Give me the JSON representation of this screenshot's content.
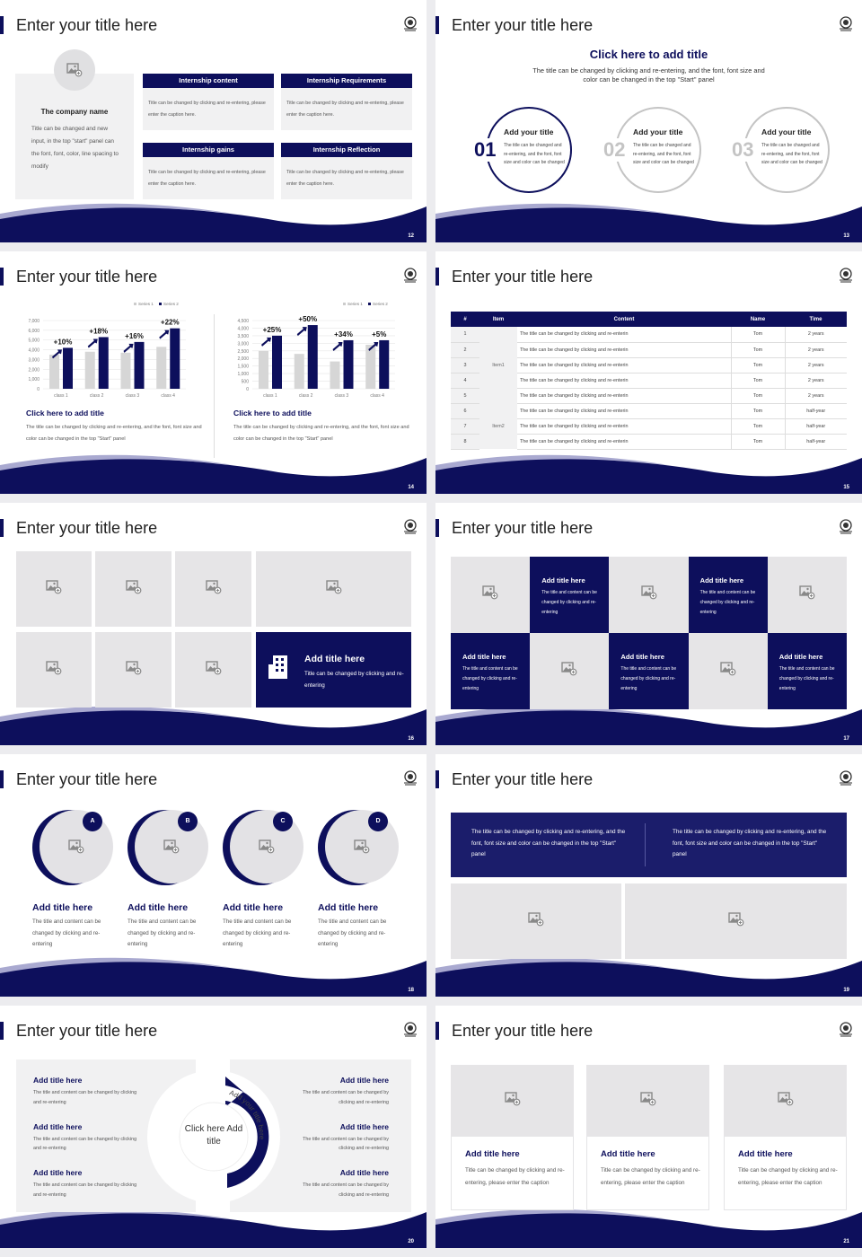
{
  "colors": {
    "navy": "#0d0f5c",
    "grey": "#e6e5e7",
    "light": "#f1f1f2",
    "ring_grey": "#c8c8c8"
  },
  "s12": {
    "title": "Enter your title here",
    "page": "12",
    "company": "The company name",
    "company_text": "Title can be changed and new input, in the top \"start\" panel can the font, font, color, line spacing to modify",
    "cards": [
      {
        "header": "Internship content",
        "text": "Title can be changed by clicking and re-entering, please enter the caption here."
      },
      {
        "header": "Internship Requirements",
        "text": "Title can be changed by clicking and re-entering, please enter the caption here."
      },
      {
        "header": "Internship gains",
        "text": "Title can be changed by clicking and re-entering, please enter the caption here."
      },
      {
        "header": "Internship Reflection",
        "text": "Title can be changed by clicking and re-entering, please enter the caption here."
      }
    ]
  },
  "s13": {
    "title": "Enter your title here",
    "page": "13",
    "heading": "Click here to add title",
    "subtext": "The title can be changed by clicking and re-entering, and the font, font size and color can be changed in the top \"Start\" panel",
    "items": [
      {
        "num": "01",
        "title": "Add your title",
        "text": "The title can be changed and re-entering, and the font, font size and color can be changed"
      },
      {
        "num": "02",
        "title": "Add your title",
        "text": "The title can be changed and re-entering, and the font, font size and color can be changed"
      },
      {
        "num": "03",
        "title": "Add your title",
        "text": "The title can be changed and re-entering, and the font, font size and color can be changed"
      }
    ]
  },
  "s14": {
    "title": "Enter your title here",
    "page": "14",
    "blocks": [
      {
        "heading": "Click here to add title",
        "text": "The title can be changed by clicking and re-entering, and the font, font size and color can be changed in the top \"Start\" panel"
      },
      {
        "heading": "Click here to add title",
        "text": "The title can be changed by clicking and re-entering, and the font, font size and color can be changed in the top \"Start\" panel"
      }
    ]
  },
  "chart_data": [
    {
      "type": "bar",
      "categories": [
        "class 1",
        "class 2",
        "class 3",
        "class 4"
      ],
      "series": [
        {
          "name": "Series 1",
          "values": [
            3500,
            3800,
            3700,
            4300
          ]
        },
        {
          "name": "Series 2",
          "values": [
            4200,
            5300,
            4800,
            6200
          ]
        }
      ],
      "annotations": [
        "+10%",
        "+18%",
        "+16%",
        "+22%"
      ],
      "ylim": [
        0,
        7000
      ],
      "yticks": [
        "0",
        "1,000",
        "2,000",
        "3,000",
        "4,000",
        "5,000",
        "6,000",
        "7,000"
      ],
      "legend": "top-right",
      "grid": true
    },
    {
      "type": "bar",
      "categories": [
        "class 1",
        "class 2",
        "class 3",
        "class 4"
      ],
      "series": [
        {
          "name": "Series 1",
          "values": [
            2500,
            2300,
            1800,
            2900
          ]
        },
        {
          "name": "Series 2",
          "values": [
            3500,
            4200,
            3200,
            3200
          ]
        }
      ],
      "annotations": [
        "+25%",
        "+50%",
        "+34%",
        "+5%"
      ],
      "ylim": [
        0,
        4500
      ],
      "yticks": [
        "0",
        "500",
        "1,000",
        "1,500",
        "2,000",
        "2,500",
        "3,000",
        "3,500",
        "4,000",
        "4,500"
      ],
      "legend": "top-right",
      "grid": true
    }
  ],
  "s15": {
    "title": "Enter your title here",
    "page": "15",
    "headers": [
      "#",
      "Item",
      "Content",
      "Name",
      "Time"
    ],
    "rows": [
      [
        "1",
        "",
        "The title can be changed by clicking and re-enterin",
        "Tom",
        "2 years"
      ],
      [
        "2",
        "",
        "The title can be changed by clicking and re-enterin",
        "Tom",
        "2 years"
      ],
      [
        "3",
        "Item1",
        "The title can be changed by clicking and re-enterin",
        "Tom",
        "2 years"
      ],
      [
        "4",
        "",
        "The title can be changed by clicking and re-enterin",
        "Tom",
        "2 years"
      ],
      [
        "5",
        "",
        "The title can be changed by clicking and re-enterin",
        "Tom",
        "2 years"
      ],
      [
        "6",
        "",
        "The title can be changed by clicking and re-enterin",
        "Tom",
        "half-year"
      ],
      [
        "7",
        "Item2",
        "The title can be changed by clicking and re-enterin",
        "Tom",
        "half-year"
      ],
      [
        "8",
        "",
        "The title can be changed by clicking and re-enterin",
        "Tom",
        "half-year"
      ]
    ]
  },
  "s16": {
    "title": "Enter your title here",
    "page": "16",
    "box_title": "Add title here",
    "box_text": "Title can be changed by clicking and re-entering"
  },
  "s17": {
    "title": "Enter your title here",
    "page": "17",
    "tile_title": "Add title here",
    "tile_text": "The title and content can be changed by clicking and re-entering"
  },
  "s18": {
    "title": "Enter your title here",
    "page": "18",
    "items": [
      {
        "badge": "A",
        "title": "Add title here",
        "text": "The title and content can be changed by clicking and re-entering"
      },
      {
        "badge": "B",
        "title": "Add title here",
        "text": "The title and content can be changed by clicking and re-entering"
      },
      {
        "badge": "C",
        "title": "Add title here",
        "text": "The title and content can be changed by clicking and re-entering"
      },
      {
        "badge": "D",
        "title": "Add title here",
        "text": "The title and content can be changed by clicking and re-entering"
      }
    ]
  },
  "s19": {
    "title": "Enter your title here",
    "page": "19",
    "texts": [
      "The title can be changed by clicking and re-entering, and the font, font size and color can be changed in the top \"Start\" panel",
      "The title can be changed by clicking and re-entering, and the font, font size and color can be changed in the top \"Start\" panel"
    ]
  },
  "s20": {
    "title": "Enter your title here",
    "page": "20",
    "center": "Click here Add title",
    "arc_left": "Add your title here",
    "arc_right": "Add your title here",
    "item_title": "Add title here",
    "item_text": "The title and content can be changed by clicking and re-entering"
  },
  "s21": {
    "title": "Enter your title here",
    "page": "21",
    "cards": [
      {
        "title": "Add title here",
        "text": "Title can be changed by clicking and re-entering, please enter the caption"
      },
      {
        "title": "Add title here",
        "text": "Title can be changed by clicking and re-entering, please enter the caption"
      },
      {
        "title": "Add title here",
        "text": "Title can be changed by clicking and re-entering, please enter the caption"
      }
    ]
  }
}
